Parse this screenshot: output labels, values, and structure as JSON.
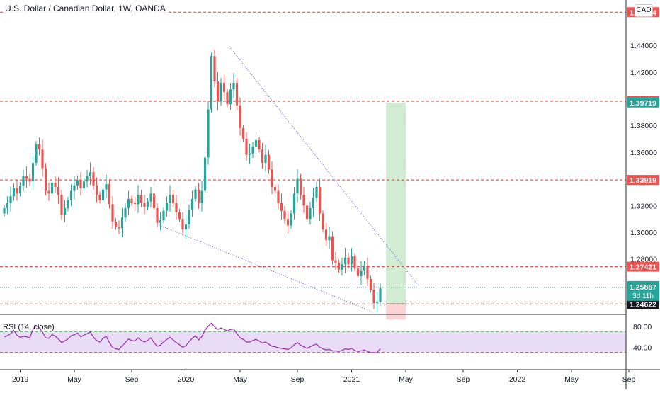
{
  "chart_title": "U.S. Dollar / Canadian Dollar, 1W, OANDA",
  "currency": "CAD",
  "colors": {
    "up": "#26a69a",
    "down": "#ef5350",
    "rsi_line": "#9c27b0",
    "rsi_band": "#e9dcf7",
    "trend": "#5a5ad8",
    "level": "#e53935"
  },
  "chart_data": {
    "type": "candlestick",
    "ylim": [
      1.2395,
      1.474
    ],
    "price_ticks": [
      "1.44000",
      "1.42000",
      "1.38000",
      "1.36000",
      "1.32000",
      "1.30000",
      "1.28000"
    ],
    "x_ticks": [
      "2019",
      "May",
      "Sep",
      "2020",
      "May",
      "Sep",
      "2021",
      "May",
      "Sep",
      "2022",
      "May",
      "Sep"
    ],
    "x_tick_weeks": [
      5,
      22,
      40,
      57,
      74,
      92,
      109,
      126,
      144,
      161,
      178,
      196
    ],
    "levels": [
      {
        "label": "1.46484",
        "value": 1.46484,
        "color": "#ef5350"
      },
      {
        "label": "1.39812",
        "value": 1.39812,
        "color": "#ef5350"
      },
      {
        "label": "1.39719",
        "value": 1.39719,
        "color": "#26a69a"
      },
      {
        "label": "1.33919",
        "value": 1.33919,
        "color": "#ef5350"
      },
      {
        "label": "1.27421",
        "value": 1.27421,
        "color": "#ef5350"
      },
      {
        "label": "1.24624",
        "value": 1.24624,
        "color": "#ef5350"
      },
      {
        "label": "1.24622",
        "value": 1.24622,
        "color": "#131722"
      }
    ],
    "current": {
      "price": "1.25867",
      "countdown": "3d 11h",
      "value": 1.25867
    },
    "position": {
      "entry": 1.24624,
      "target": 1.39719,
      "stop": 1.2345
    },
    "trendlines": [
      {
        "from": [
          71,
          1.438
        ],
        "to": [
          130,
          1.26
        ]
      },
      {
        "from": [
          48,
          1.306
        ],
        "to": [
          116,
          1.24
        ]
      }
    ],
    "closes": [
      1.318,
      1.322,
      1.327,
      1.333,
      1.329,
      1.335,
      1.342,
      1.34,
      1.338,
      1.352,
      1.366,
      1.362,
      1.348,
      1.331,
      1.329,
      1.337,
      1.334,
      1.328,
      1.313,
      1.318,
      1.324,
      1.331,
      1.335,
      1.339,
      1.333,
      1.338,
      1.342,
      1.345,
      1.335,
      1.328,
      1.324,
      1.332,
      1.336,
      1.321,
      1.308,
      1.304,
      1.303,
      1.311,
      1.318,
      1.325,
      1.322,
      1.321,
      1.328,
      1.322,
      1.319,
      1.323,
      1.329,
      1.318,
      1.307,
      1.309,
      1.316,
      1.322,
      1.328,
      1.322,
      1.315,
      1.31,
      1.302,
      1.306,
      1.317,
      1.325,
      1.332,
      1.322,
      1.331,
      1.356,
      1.392,
      1.432,
      1.413,
      1.398,
      1.412,
      1.405,
      1.396,
      1.407,
      1.412,
      1.395,
      1.378,
      1.37,
      1.358,
      1.359,
      1.364,
      1.369,
      1.362,
      1.352,
      1.358,
      1.347,
      1.334,
      1.331,
      1.322,
      1.316,
      1.31,
      1.305,
      1.314,
      1.329,
      1.34,
      1.328,
      1.32,
      1.31,
      1.318,
      1.326,
      1.334,
      1.314,
      1.302,
      1.294,
      1.297,
      1.279,
      1.277,
      1.272,
      1.276,
      1.281,
      1.276,
      1.282,
      1.273,
      1.267,
      1.271,
      1.275,
      1.265,
      1.257,
      1.247,
      1.248,
      1.258
    ],
    "rsi": {
      "ylim": [
        0,
        100
      ],
      "ticks": [
        "80.00",
        "40.00"
      ],
      "upper": 70,
      "lower": 30,
      "values": [
        60,
        62,
        66,
        72,
        63,
        59,
        61,
        60,
        58,
        74,
        81,
        77,
        69,
        58,
        57,
        64,
        61,
        56,
        49,
        52,
        56,
        62,
        64,
        67,
        60,
        63,
        66,
        69,
        59,
        53,
        50,
        57,
        61,
        49,
        40,
        37,
        36,
        43,
        49,
        56,
        53,
        52,
        58,
        53,
        50,
        53,
        58,
        49,
        42,
        44,
        50,
        55,
        59,
        54,
        49,
        45,
        40,
        43,
        51,
        57,
        62,
        54,
        60,
        73,
        80,
        86,
        79,
        74,
        77,
        74,
        71,
        74,
        75,
        66,
        58,
        55,
        50,
        50,
        53,
        55,
        52,
        48,
        50,
        46,
        42,
        41,
        39,
        38,
        37,
        36,
        39,
        45,
        49,
        44,
        41,
        38,
        41,
        44,
        46,
        40,
        37,
        35,
        36,
        33,
        33,
        32,
        34,
        37,
        36,
        38,
        34,
        32,
        33,
        35,
        32,
        30,
        29,
        30,
        37
      ]
    }
  }
}
